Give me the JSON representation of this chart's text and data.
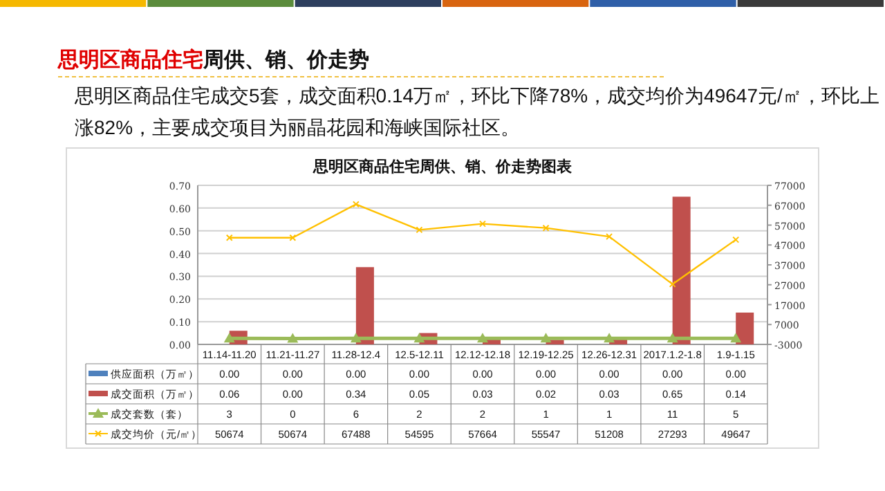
{
  "chart_data": {
    "type": "bar",
    "title": "思明区商品住宅周供、销、价走势图表",
    "annotations": [
      "思明区商品住宅",
      "周供、销、价走势",
      "思明区商品住宅成交5套，成交面积0.14万㎡，环比下降78%，成交均价为49647元/㎡，环比上涨82%，主要成交项目为丽晶花园和海峡国际社区。"
    ],
    "categories": [
      "11.14-11.20",
      "11.21-11.27",
      "11.28-12.4",
      "12.5-12.11",
      "12.12-12.18",
      "12.19-12.25",
      "12.26-12.31",
      "2017.1.2-1.8",
      "1.9-1.15"
    ],
    "series": [
      {
        "name": "供应面积（万㎡）",
        "color": "#4f81bd",
        "values": [
          0,
          0,
          0,
          0,
          0,
          0,
          0,
          0,
          0
        ],
        "value_labels": [
          "0.00",
          "0.00",
          "0.00",
          "0.00",
          "0.00",
          "0.00",
          "0.00",
          "0.00",
          "0.00"
        ]
      },
      {
        "name": "成交面积（万㎡）",
        "color": "#c0504d",
        "values": [
          0.06,
          0,
          0.34,
          0.05,
          0.03,
          0.02,
          0.03,
          0.65,
          0.14
        ],
        "value_labels": [
          "0.06",
          "0.00",
          "0.34",
          "0.05",
          "0.03",
          "0.02",
          "0.03",
          "0.65",
          "0.14"
        ]
      },
      {
        "name": "成交套数（套）",
        "type": "line",
        "axis": "y2",
        "color": "#9bbb59",
        "marker": "triangle",
        "values": [
          3,
          0,
          6,
          2,
          2,
          1,
          1,
          11,
          5
        ],
        "value_labels": [
          "3",
          "0",
          "6",
          "2",
          "2",
          "1",
          "1",
          "11",
          "5"
        ]
      },
      {
        "name": "成交均价（元/㎡）",
        "type": "line",
        "axis": "y2",
        "color": "#ffc000",
        "marker": "cross",
        "values": [
          50674,
          50674,
          67488,
          54595,
          57664,
          55547,
          51208,
          27293,
          49647
        ],
        "value_labels": [
          "50674",
          "50674",
          "67488",
          "54595",
          "57664",
          "55547",
          "51208",
          "27293",
          "49647"
        ]
      }
    ],
    "ylim": [
      0,
      0.7
    ],
    "yticks": [
      {
        "value": 0,
        "label": "0.00"
      },
      {
        "value": 0.1,
        "label": "0.10"
      },
      {
        "value": 0.2,
        "label": "0.20"
      },
      {
        "value": 0.3,
        "label": "0.30"
      },
      {
        "value": 0.4,
        "label": "0.40"
      },
      {
        "value": 0.5,
        "label": "0.50"
      },
      {
        "value": 0.6,
        "label": "0.60"
      },
      {
        "value": 0.7,
        "label": "0.70"
      }
    ],
    "y2lim": [
      -3000,
      77000
    ],
    "y2ticks": [
      -3000,
      7000,
      17000,
      27000,
      37000,
      47000,
      57000,
      67000,
      77000
    ],
    "grid": "y",
    "legend": "bottom"
  }
}
